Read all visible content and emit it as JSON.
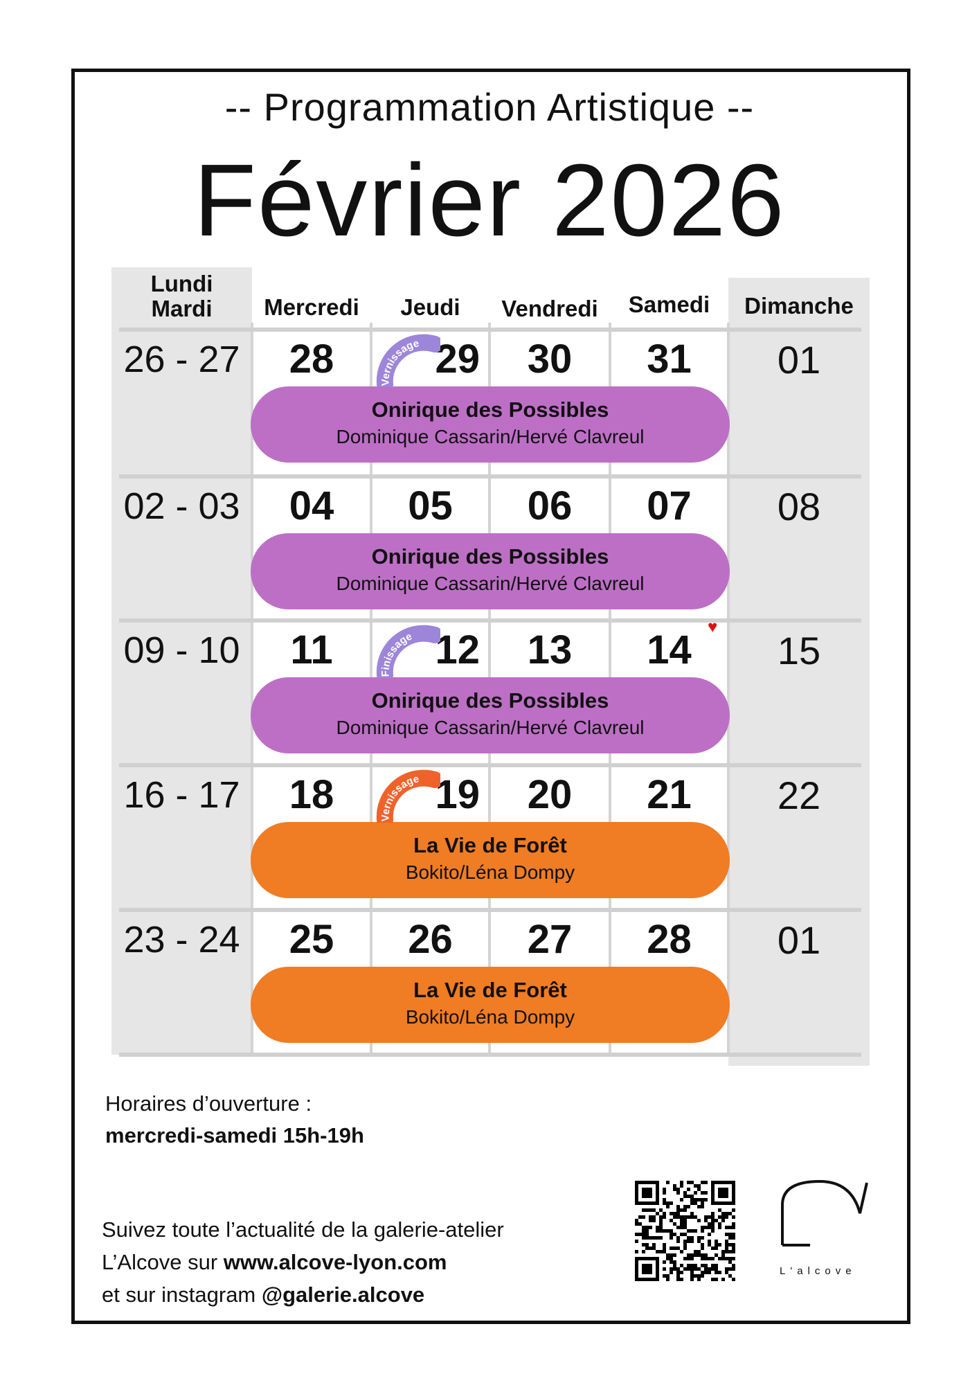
{
  "header": {
    "subtitle": "-- Programmation Artistique --",
    "title": "Février 2026"
  },
  "columns": {
    "mon_tue": [
      "Lundi",
      "Mardi"
    ],
    "wed": "Mercredi",
    "thu": "Jeudi",
    "fri": "Vendredi",
    "sat": "Samedi",
    "sun": "Dimanche"
  },
  "weeks": [
    {
      "montue": "26 - 27",
      "days": [
        "28",
        "29",
        "30",
        "31"
      ],
      "sun": "01",
      "event": {
        "title": "Onirique des Possibles",
        "artists": "Dominique Cassarin/Hervé Clavreul",
        "color": "#bd6fc6"
      },
      "badge": {
        "label": "Vernissage",
        "day_index": 1,
        "color": "#9d86d9"
      }
    },
    {
      "montue": "02 - 03",
      "days": [
        "04",
        "05",
        "06",
        "07"
      ],
      "sun": "08",
      "event": {
        "title": "Onirique des Possibles",
        "artists": "Dominique Cassarin/Hervé Clavreul",
        "color": "#bd6fc6"
      }
    },
    {
      "montue": "09 - 10",
      "days": [
        "11",
        "12",
        "13",
        "14"
      ],
      "sun": "15",
      "event": {
        "title": "Onirique des Possibles",
        "artists": "Dominique Cassarin/Hervé Clavreul",
        "color": "#bd6fc6"
      },
      "badge": {
        "label": "Finissage",
        "day_index": 1,
        "color": "#9d86d9"
      },
      "heart_day_index": 3
    },
    {
      "montue": "16 - 17",
      "days": [
        "18",
        "19",
        "20",
        "21"
      ],
      "sun": "22",
      "event": {
        "title": "La Vie de Forêt",
        "artists": "Bokito/Léna Dompy",
        "color": "#f07c24"
      },
      "badge": {
        "label": "Vernissage",
        "day_index": 1,
        "color": "#f0622a"
      }
    },
    {
      "montue": "23 - 24",
      "days": [
        "25",
        "26",
        "27",
        "28"
      ],
      "sun": "01",
      "event": {
        "title": "La Vie de Forêt",
        "artists": "Bokito/Léna Dompy",
        "color": "#f07c24"
      }
    }
  ],
  "hours": {
    "label": "Horaires d’ouverture :",
    "value": "mercredi-samedi 15h-19h"
  },
  "footer": {
    "line1": "Suivez toute l’actualité de la galerie-atelier",
    "line2_prefix": "L’Alcove sur ",
    "website": "www.alcove-lyon.com",
    "line3_prefix": "et sur instagram ",
    "instagram": "@galerie.alcove"
  },
  "logo": {
    "text": "L'alcove"
  },
  "icons": {
    "qr": "qr-code-icon",
    "heart": "heart-icon"
  }
}
